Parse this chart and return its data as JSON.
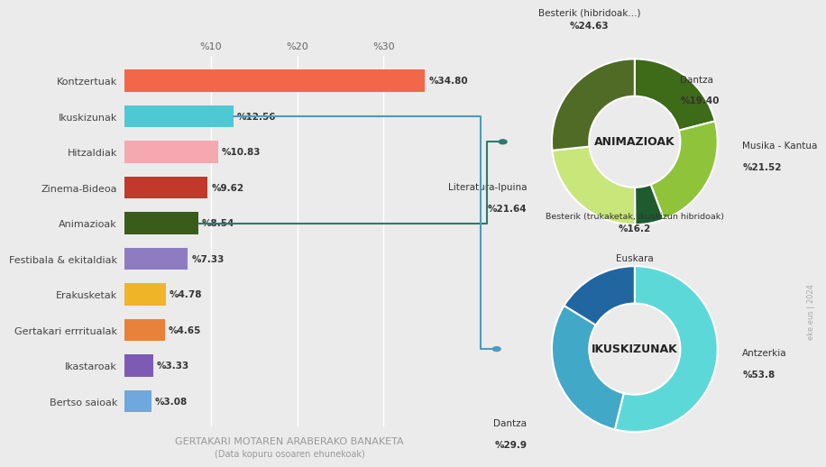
{
  "background_color": "#ebebeb",
  "bar_categories": [
    "Kontzertuak",
    "Ikuskizunak",
    "Hitzaldiak",
    "Zinema-Bideoa",
    "Animazioak",
    "Festibala & ekitaldiak",
    "Erakusketak",
    "Gertakari errritualak",
    "Ikastaroak",
    "Bertso saioak"
  ],
  "bar_values": [
    34.8,
    12.56,
    10.83,
    9.62,
    8.54,
    7.33,
    4.78,
    4.65,
    3.33,
    3.08
  ],
  "bar_colors": [
    "#f2674a",
    "#4ec9d4",
    "#f4a8b0",
    "#c0392b",
    "#3a5c1a",
    "#8e7cc3",
    "#f0b429",
    "#e8813a",
    "#7d5bb5",
    "#6fa8dc"
  ],
  "bar_labels": [
    "%34.80",
    "%12.56",
    "%10.83",
    "%9.62",
    "%8.54",
    "%7.33",
    "%4.78",
    "%4.65",
    "%3.33",
    "%3.08"
  ],
  "donut1_title": "ANIMAZIOAK",
  "donut1_values": [
    19.4,
    21.52,
    5.22,
    21.64,
    24.63
  ],
  "donut1_colors": [
    "#3d6b18",
    "#8fc43a",
    "#1e5c30",
    "#c8e67a",
    "#506b25"
  ],
  "donut2_title": "IKUSKIZUNAK",
  "donut2_values": [
    53.8,
    29.9,
    16.2
  ],
  "donut2_colors": [
    "#5dd8d8",
    "#42a8c8",
    "#2166a0"
  ],
  "title": "GERTAKARI MOTAREN ARABERAKO BANAKETA",
  "subtitle": "(Data kopuru osoaren ehunekoak)",
  "xtick_labels": [
    "%10",
    "%20",
    "%30"
  ],
  "xtick_values": [
    10,
    20,
    30
  ],
  "connector_color_animazioak": "#2d7a6e",
  "connector_color_ikuskizunak": "#4a9bbf"
}
